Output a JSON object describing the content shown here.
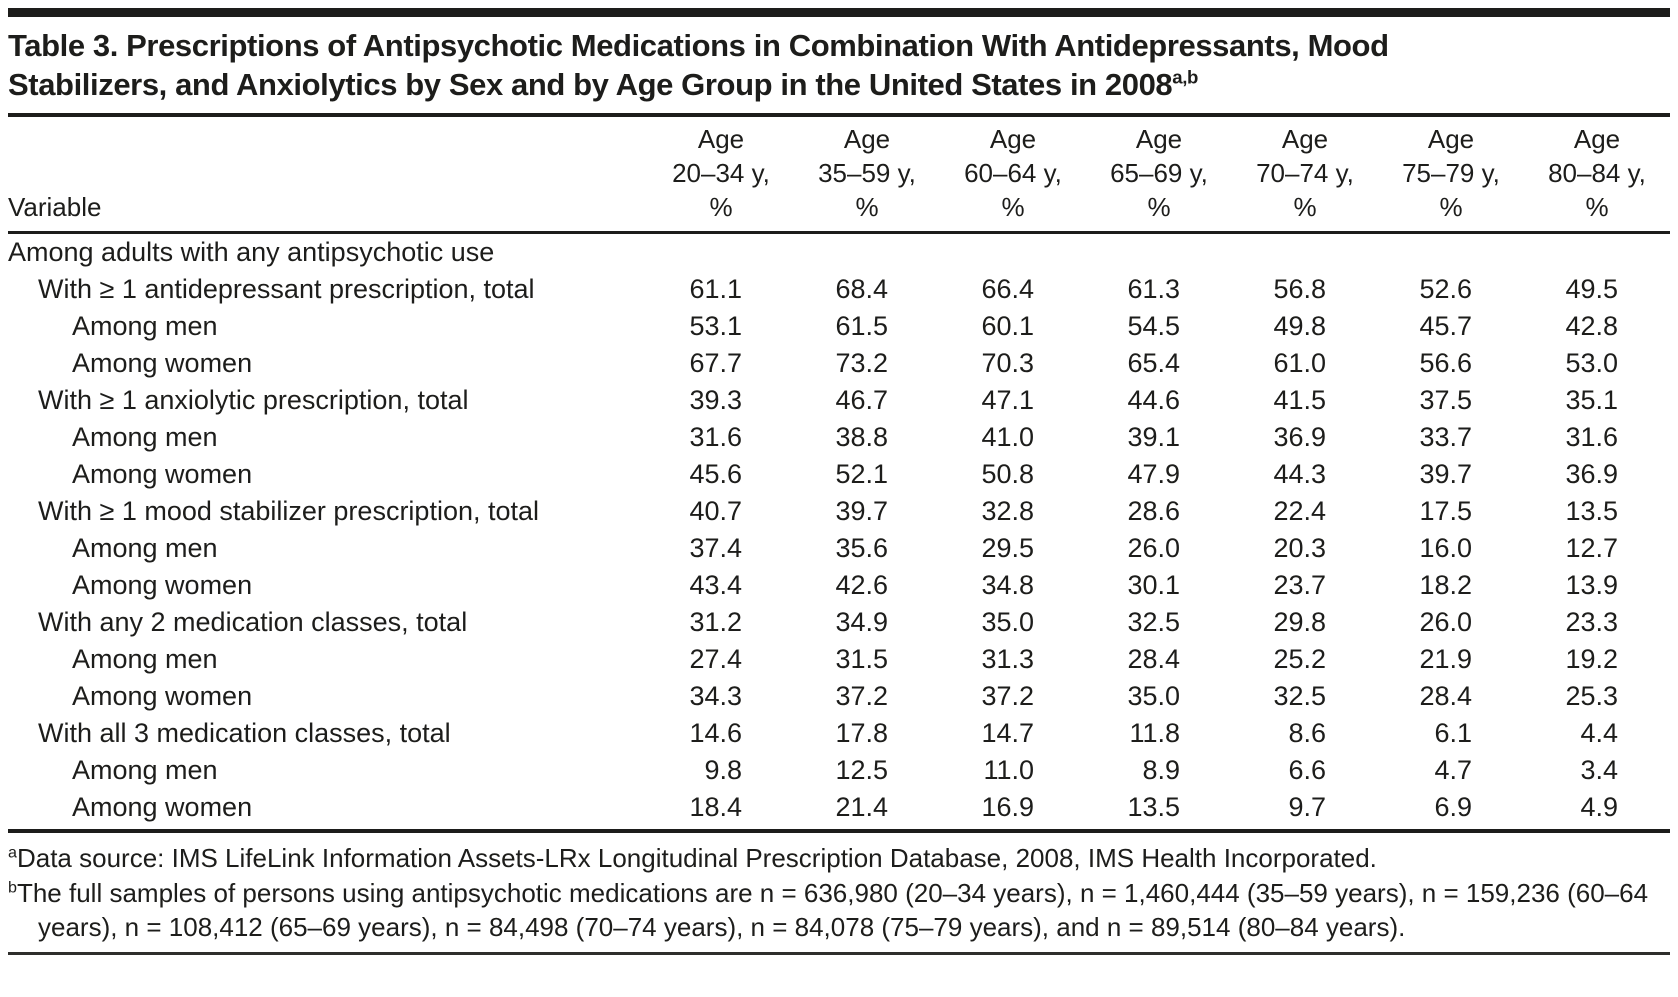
{
  "title": {
    "line1": "Table 3. Prescriptions of Antipsychotic Medications in Combination With Antidepressants, Mood",
    "line2": "Stabilizers, and Anxiolytics by Sex and by Age Group in the United States in 2008",
    "superscript": "a,b"
  },
  "table": {
    "variable_header": "Variable",
    "columns": [
      {
        "line1": "Age",
        "line2": "20–34 y,",
        "line3": "%"
      },
      {
        "line1": "Age",
        "line2": "35–59 y,",
        "line3": "%"
      },
      {
        "line1": "Age",
        "line2": "60–64 y,",
        "line3": "%"
      },
      {
        "line1": "Age",
        "line2": "65–69 y,",
        "line3": "%"
      },
      {
        "line1": "Age",
        "line2": "70–74 y,",
        "line3": "%"
      },
      {
        "line1": "Age",
        "line2": "75–79 y,",
        "line3": "%"
      },
      {
        "line1": "Age",
        "line2": "80–84 y,",
        "line3": "%"
      }
    ],
    "rows": [
      {
        "label": "Among adults with any antipsychotic use",
        "indent": 0,
        "values": []
      },
      {
        "label": "With ≥ 1 antidepressant prescription, total",
        "indent": 1,
        "values": [
          "61.1",
          "68.4",
          "66.4",
          "61.3",
          "56.8",
          "52.6",
          "49.5"
        ]
      },
      {
        "label": "Among men",
        "indent": 2,
        "values": [
          "53.1",
          "61.5",
          "60.1",
          "54.5",
          "49.8",
          "45.7",
          "42.8"
        ]
      },
      {
        "label": "Among women",
        "indent": 2,
        "values": [
          "67.7",
          "73.2",
          "70.3",
          "65.4",
          "61.0",
          "56.6",
          "53.0"
        ]
      },
      {
        "label": "With ≥ 1 anxiolytic prescription, total",
        "indent": 1,
        "values": [
          "39.3",
          "46.7",
          "47.1",
          "44.6",
          "41.5",
          "37.5",
          "35.1"
        ]
      },
      {
        "label": "Among men",
        "indent": 2,
        "values": [
          "31.6",
          "38.8",
          "41.0",
          "39.1",
          "36.9",
          "33.7",
          "31.6"
        ]
      },
      {
        "label": "Among women",
        "indent": 2,
        "values": [
          "45.6",
          "52.1",
          "50.8",
          "47.9",
          "44.3",
          "39.7",
          "36.9"
        ]
      },
      {
        "label": "With ≥ 1 mood stabilizer prescription, total",
        "indent": 1,
        "values": [
          "40.7",
          "39.7",
          "32.8",
          "28.6",
          "22.4",
          "17.5",
          "13.5"
        ]
      },
      {
        "label": "Among men",
        "indent": 2,
        "values": [
          "37.4",
          "35.6",
          "29.5",
          "26.0",
          "20.3",
          "16.0",
          "12.7"
        ]
      },
      {
        "label": "Among women",
        "indent": 2,
        "values": [
          "43.4",
          "42.6",
          "34.8",
          "30.1",
          "23.7",
          "18.2",
          "13.9"
        ]
      },
      {
        "label": "With any 2 medication classes, total",
        "indent": 1,
        "values": [
          "31.2",
          "34.9",
          "35.0",
          "32.5",
          "29.8",
          "26.0",
          "23.3"
        ]
      },
      {
        "label": "Among men",
        "indent": 2,
        "values": [
          "27.4",
          "31.5",
          "31.3",
          "28.4",
          "25.2",
          "21.9",
          "19.2"
        ]
      },
      {
        "label": "Among women",
        "indent": 2,
        "values": [
          "34.3",
          "37.2",
          "37.2",
          "35.0",
          "32.5",
          "28.4",
          "25.3"
        ]
      },
      {
        "label": "With all 3 medication classes, total",
        "indent": 1,
        "values": [
          "14.6",
          "17.8",
          "14.7",
          "11.8",
          "8.6",
          "6.1",
          "4.4"
        ]
      },
      {
        "label": "Among men",
        "indent": 2,
        "values": [
          "9.8",
          "12.5",
          "11.0",
          "8.9",
          "6.6",
          "4.7",
          "3.4"
        ]
      },
      {
        "label": "Among women",
        "indent": 2,
        "values": [
          "18.4",
          "21.4",
          "16.9",
          "13.5",
          "9.7",
          "6.9",
          "4.9"
        ]
      }
    ]
  },
  "footnotes": [
    {
      "marker": "a",
      "text": "Data source: IMS LifeLink Information Assets-LRx Longitudinal Prescription Database, 2008, IMS Health Incorporated."
    },
    {
      "marker": "b",
      "text": "The full samples of persons using antipsychotic medications are n = 636,980 (20–34 years), n = 1,460,444 (35–59 years), n = 159,236 (60–64 years), n = 108,412 (65–69 years), n = 84,498 (70–74 years), n = 84,078 (75–79 years), and n = 89,514 (80–84 years)."
    }
  ],
  "colors": {
    "text": "#1d1d1b",
    "rule": "#1d1d1b",
    "background": "#ffffff"
  }
}
